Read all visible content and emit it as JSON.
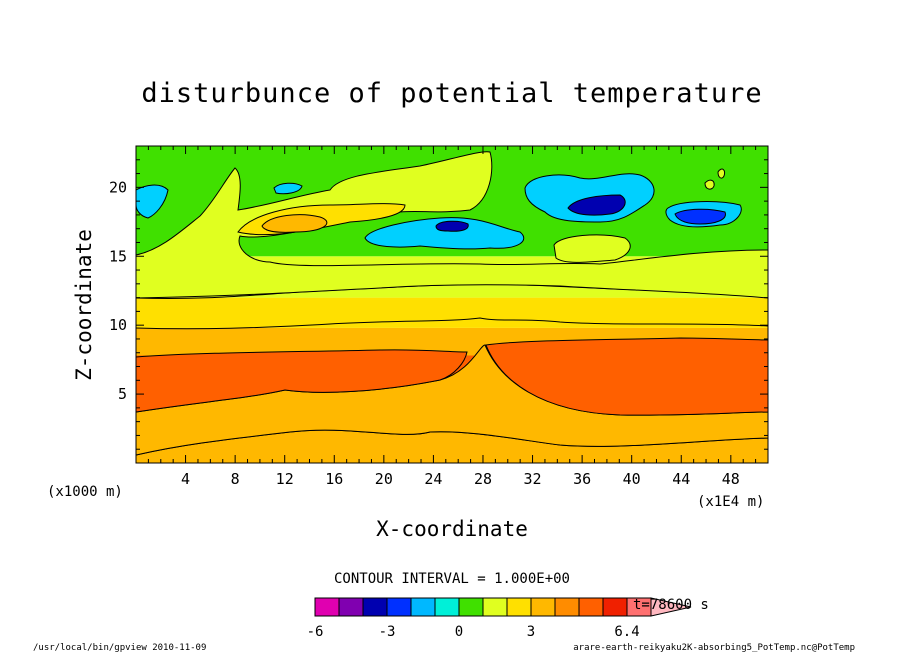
{
  "chart_data": {
    "type": "heatmap",
    "title": "disturbunce of potential temperature",
    "xlabel": "X-coordinate",
    "ylabel": "Z-coordinate",
    "x_unit_label": "(x1E4 m)",
    "y_unit_label": "(x1000 m)",
    "xlim": [
      0,
      51
    ],
    "ylim": [
      0,
      23
    ],
    "x_ticks": [
      4,
      8,
      12,
      16,
      20,
      24,
      28,
      32,
      36,
      40,
      44,
      48
    ],
    "y_ticks": [
      5,
      10,
      15,
      20
    ],
    "contour_interval_label": "CONTOUR INTERVAL = 1.000E+00",
    "time_label": "t=78600 s",
    "colorbar": {
      "levels": [
        -6,
        -5,
        -4,
        -3,
        -2,
        -1,
        0,
        1,
        2,
        3,
        4,
        5,
        6,
        6.4
      ],
      "tick_labels": [
        "-6",
        "-3",
        "0",
        "3",
        "6.4"
      ],
      "tick_values": [
        -6,
        -3,
        0,
        3,
        6.4
      ],
      "colors": [
        "#e000b0",
        "#8000b0",
        "#0000b0",
        "#0030ff",
        "#00b8ff",
        "#00f0d8",
        "#40e000",
        "#e0ff20",
        "#ffe000",
        "#ffb800",
        "#ff8c00",
        "#ff6000",
        "#f02000",
        "#ff7070",
        "#ffb8c0"
      ]
    },
    "layers": [
      {
        "y0": 0.0,
        "y1": 1.8,
        "value": 2,
        "color": "#ffe000"
      },
      {
        "y0": 1.8,
        "y1": 3.8,
        "value": 3,
        "color": "#ffb800"
      },
      {
        "y0": 3.8,
        "y1": 7.8,
        "value": 4,
        "color": "#ff6000"
      },
      {
        "y0": 7.8,
        "y1": 9.8,
        "value": 3,
        "color": "#ffb800"
      },
      {
        "y0": 9.8,
        "y1": 12.0,
        "value": 2,
        "color": "#ffe000"
      },
      {
        "y0": 12.0,
        "y1": 15.0,
        "value": 1,
        "color": "#e0ff20"
      },
      {
        "y0": 15.0,
        "y1": 23.0,
        "value": 0,
        "color": "#40e000"
      }
    ]
  },
  "footer": {
    "left": "/usr/local/bin/gpview  2010-11-09",
    "right": "arare-earth-reikyaku2K-absorbing5_PotTemp.nc@PotTemp"
  }
}
